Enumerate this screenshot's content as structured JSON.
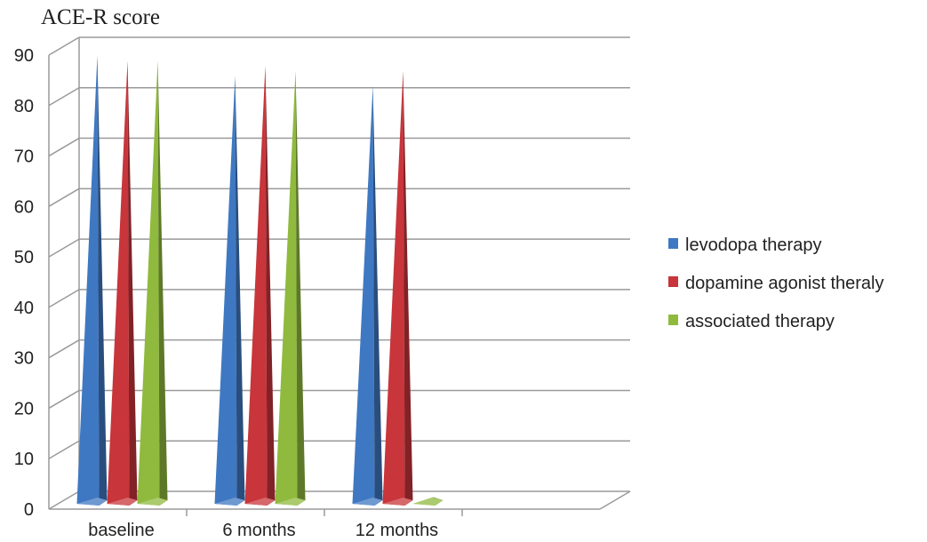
{
  "chart_data": {
    "type": "bar",
    "style": "3d-cone",
    "ylabel": "ACE-R score",
    "xlabel": "",
    "categories": [
      "baseline",
      "6 months",
      "12 months",
      ""
    ],
    "series": [
      {
        "name": "levodopa therapy",
        "color": "#3f78c2",
        "values": [
          89,
          85,
          83,
          null
        ]
      },
      {
        "name": "dopamine agonist theraly",
        "color": "#c8353a",
        "values": [
          88,
          87,
          86,
          null
        ]
      },
      {
        "name": "associated therapy",
        "color": "#8fba3e",
        "values": [
          88,
          86,
          1.5,
          null
        ]
      }
    ],
    "ylim": [
      0,
      90
    ],
    "yticks": [
      0,
      10,
      20,
      30,
      40,
      50,
      60,
      70,
      80,
      90
    ],
    "grid": true,
    "legend_position": "right"
  }
}
